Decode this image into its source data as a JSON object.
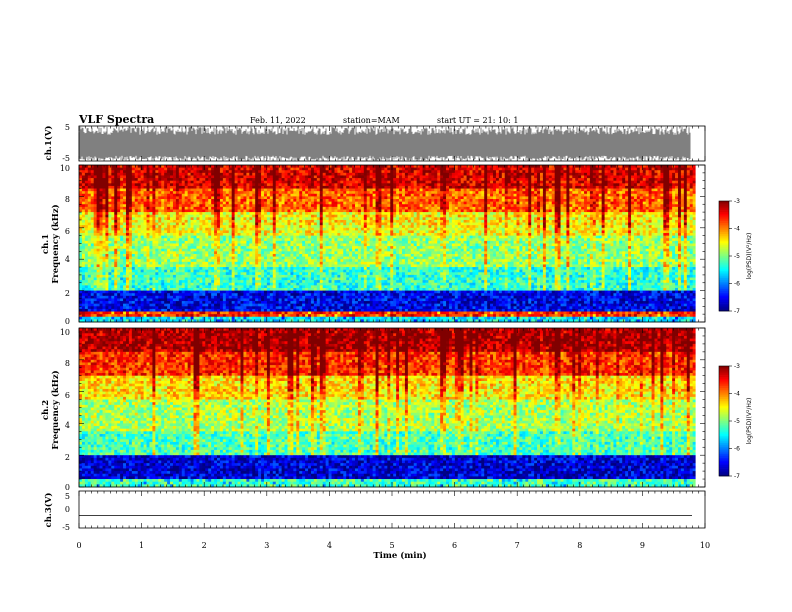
{
  "header": {
    "title": "VLF Spectra",
    "date": "Feb. 11, 2022",
    "station": "station=MAM",
    "start": "start  UT  =   21: 10: 1"
  },
  "chart_data": [
    {
      "type": "line",
      "name": "ch1-waveform",
      "ylabel": "ch.1(V)",
      "ylim": [
        -5,
        5
      ],
      "yticks": [
        "5",
        "-5"
      ],
      "xlim": [
        0,
        10
      ],
      "description_values": {
        "baseline": 0,
        "typical_envelope": [
          -3.5,
          2.5
        ],
        "max_excursion": [
          -5,
          5
        ]
      }
    },
    {
      "type": "heatmap",
      "name": "ch1-spectrogram",
      "ylabel_line1": "ch.1",
      "ylabel_line2": "Frequency (kHz)",
      "ylim": [
        0,
        10
      ],
      "yticks": [
        "0",
        "2",
        "4",
        "6",
        "8",
        "10"
      ],
      "xlim": [
        0,
        9.85
      ],
      "bands": [
        {
          "from": 0.0,
          "to": 0.4,
          "level": -5.5
        },
        {
          "from": 0.4,
          "to": 0.6,
          "level": -3.6
        },
        {
          "from": 0.6,
          "to": 2.0,
          "level": -6.5
        },
        {
          "from": 2.0,
          "to": 3.5,
          "level": -5.4
        },
        {
          "from": 3.5,
          "to": 5.5,
          "level": -5.0
        },
        {
          "from": 5.5,
          "to": 7.0,
          "level": -4.6
        },
        {
          "from": 7.0,
          "to": 8.5,
          "level": -4.0
        },
        {
          "from": 8.5,
          "to": 10.0,
          "level": -3.5
        }
      ],
      "colorbar": {
        "label": "log(PSD)(V²/Hz)",
        "ticks": [
          "-3",
          "-4",
          "-5",
          "-6",
          "-7"
        ],
        "range": [
          -7,
          -3
        ]
      }
    },
    {
      "type": "heatmap",
      "name": "ch2-spectrogram",
      "ylabel_line1": "ch.2",
      "ylabel_line2": "Frequency (kHz)",
      "ylim": [
        0,
        10
      ],
      "yticks": [
        "0",
        "2",
        "4",
        "6",
        "8",
        "10"
      ],
      "xlim": [
        0,
        9.85
      ],
      "bands": [
        {
          "from": 0.0,
          "to": 0.5,
          "level": -5.2
        },
        {
          "from": 0.5,
          "to": 2.0,
          "level": -6.6
        },
        {
          "from": 2.0,
          "to": 3.5,
          "level": -5.3
        },
        {
          "from": 3.5,
          "to": 5.5,
          "level": -4.9
        },
        {
          "from": 5.5,
          "to": 7.0,
          "level": -4.5
        },
        {
          "from": 7.0,
          "to": 8.5,
          "level": -3.8
        },
        {
          "from": 8.5,
          "to": 10.0,
          "level": -3.3
        }
      ],
      "colorbar": {
        "label": "log(PSD)(V²/Hz)",
        "ticks": [
          "-3",
          "-4",
          "-5",
          "-6",
          "-7"
        ],
        "range": [
          -7,
          -3
        ]
      }
    },
    {
      "type": "line",
      "name": "ch3-waveform",
      "ylabel": "ch.3(V)",
      "ylim": [
        -5,
        5
      ],
      "yticks": [
        "5",
        "0",
        "-5"
      ],
      "xlim": [
        0,
        10
      ],
      "values_constant": -1.6
    }
  ],
  "xaxis": {
    "label": "Time  (min)",
    "ticks": [
      "0",
      "1",
      "2",
      "3",
      "4",
      "5",
      "6",
      "7",
      "8",
      "9",
      "10"
    ],
    "range": [
      0,
      10
    ]
  }
}
